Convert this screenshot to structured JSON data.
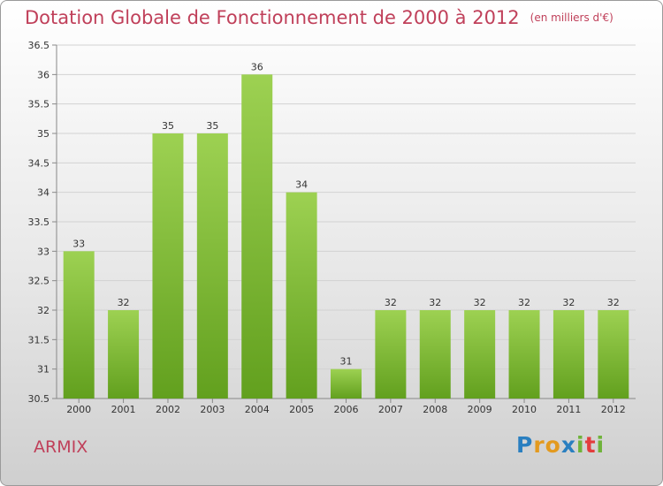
{
  "title": "Dotation Globale de Fonctionnement de 2000 à 2012",
  "subtitle": "(en milliers d'€)",
  "place": "ARMIX",
  "logo": {
    "letters": [
      "P",
      "r",
      "o",
      "x",
      "i",
      "t",
      "i"
    ],
    "colors": [
      "#2a7fc0",
      "#e39a1f",
      "#e39a1f",
      "#2a7fc0",
      "#6fb33a",
      "#e33d3d",
      "#6fb33a"
    ]
  },
  "chart_data": {
    "type": "bar",
    "title": "Dotation Globale de Fonctionnement de 2000 à 2012",
    "subtitle": "(en milliers d'€)",
    "xlabel": "",
    "ylabel": "",
    "categories": [
      "2000",
      "2001",
      "2002",
      "2003",
      "2004",
      "2005",
      "2006",
      "2007",
      "2008",
      "2009",
      "2010",
      "2011",
      "2012"
    ],
    "values": [
      33,
      32,
      35,
      35,
      36,
      34,
      31,
      32,
      32,
      32,
      32,
      32,
      32
    ],
    "data_labels": [
      "33",
      "32",
      "35",
      "35",
      "36",
      "34",
      "31",
      "32",
      "32",
      "32",
      "32",
      "32",
      "32"
    ],
    "ylim": [
      30.5,
      36.5
    ],
    "yticks": [
      30.5,
      31,
      31.5,
      32,
      32.5,
      33,
      33.5,
      34,
      34.5,
      35,
      35.5,
      36,
      36.5
    ],
    "ytick_labels": [
      "30.5",
      "31",
      "31.5",
      "32",
      "32.5",
      "33",
      "33.5",
      "34",
      "34.5",
      "35",
      "35.5",
      "36",
      "36.5"
    ],
    "grid": true,
    "bar_color_top": "#9dd152",
    "bar_color_bottom": "#62a01e"
  }
}
